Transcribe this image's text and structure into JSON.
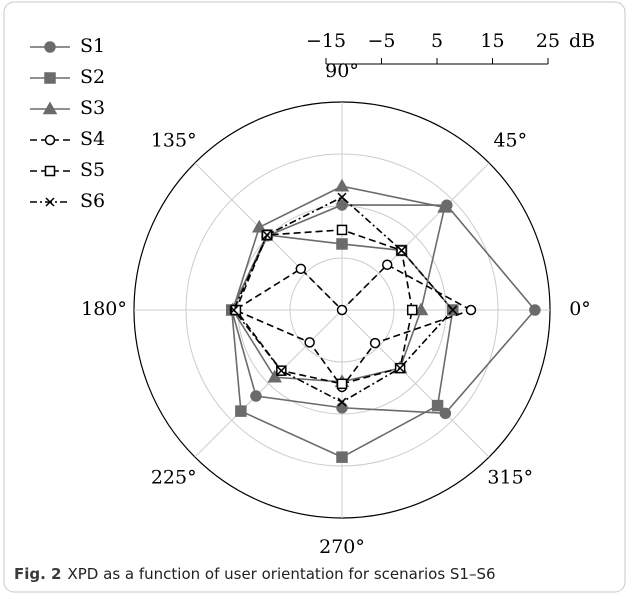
{
  "chart_data": {
    "type": "polar",
    "caption_label": "Fig. 2",
    "caption": "XPD as a function of user orientation for scenarios S1–S6",
    "rlim": [
      -15,
      25
    ],
    "rticks": [
      {
        "value": -15,
        "label": "−15"
      },
      {
        "value": -5,
        "label": "−5"
      },
      5,
      15,
      25
    ],
    "r_unit": "dB",
    "thetaticks": [
      {
        "value": 0,
        "label": "0°"
      },
      {
        "value": 45,
        "label": "45°"
      },
      {
        "value": 90,
        "label": "90°"
      },
      {
        "value": 135,
        "label": "135°"
      },
      {
        "value": 180,
        "label": "180°"
      },
      {
        "value": 225,
        "label": "225°"
      },
      {
        "value": 270,
        "label": "270°"
      },
      {
        "value": 315,
        "label": "315°"
      }
    ],
    "theta": [
      0,
      45,
      90,
      135,
      180,
      225,
      270,
      315
    ],
    "legend": "upper left",
    "series": [
      {
        "name": "S1",
        "color": "#6b6b6b",
        "marker": "circle",
        "dash": "solid",
        "values": [
          22.1,
          13.5,
          5.2,
          5.2,
          6.2,
          8.4,
          3.8,
          13.1
        ]
      },
      {
        "name": "S2",
        "color": "#6b6b6b",
        "marker": "square",
        "dash": "solid",
        "values": [
          6.3,
          1.2,
          -2.3,
          5.4,
          6.2,
          12.5,
          13.3,
          11.0
        ]
      },
      {
        "name": "S3",
        "color": "#6b6b6b",
        "marker": "triangle",
        "dash": "solid",
        "values": [
          0.2,
          12.9,
          8.8,
          7.5,
          6.0,
          3.3,
          -1.2,
          0.8
        ]
      },
      {
        "name": "S4",
        "color": "#000000",
        "marker": "open-circle",
        "dash": "dashed",
        "values": [
          9.8,
          -2.7,
          -15,
          -3.8,
          5.6,
          -6.2,
          -0.2,
          -6.0
        ]
      },
      {
        "name": "S5",
        "color": "#000000",
        "marker": "open-square",
        "dash": "dashed",
        "values": [
          -1.5,
          1.2,
          0.4,
          5.4,
          5.4,
          1.5,
          -0.8,
          0.8
        ]
      },
      {
        "name": "S6",
        "color": "#000000",
        "marker": "cross",
        "dash": "dashdot",
        "values": [
          6.3,
          1.2,
          6.7,
          5.4,
          5.8,
          1.5,
          2.7,
          0.8
        ]
      }
    ]
  }
}
